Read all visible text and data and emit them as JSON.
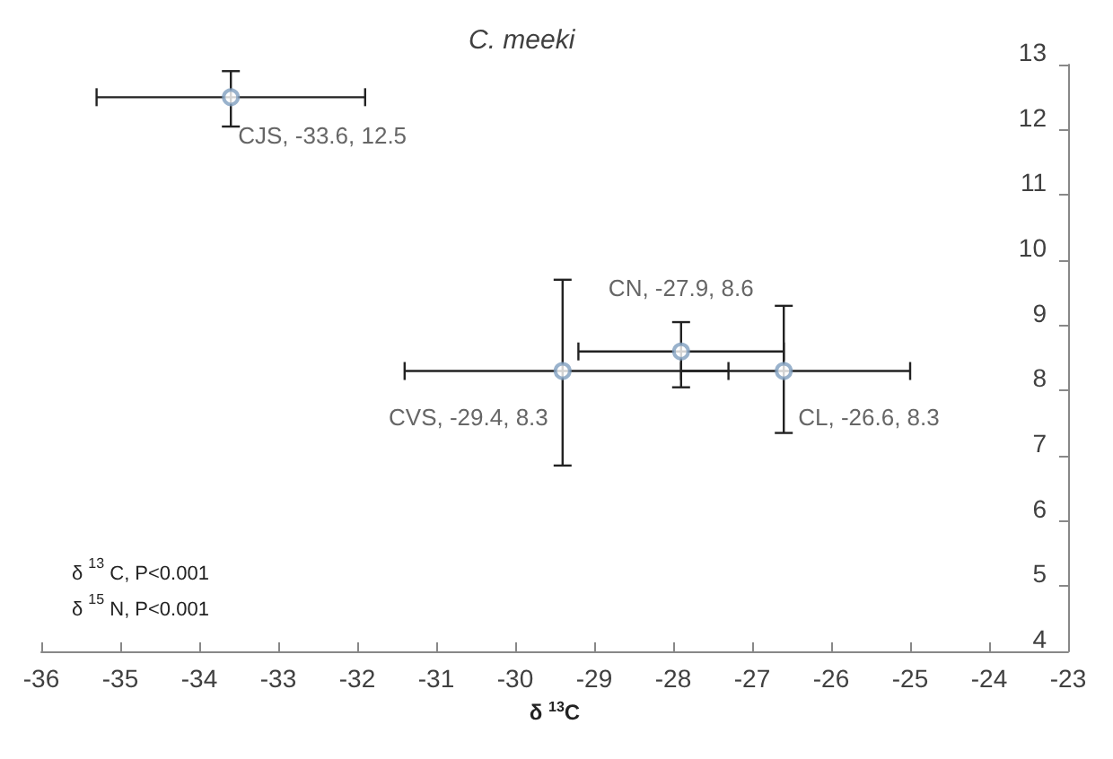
{
  "chart_data": {
    "type": "scatter",
    "title": "C. meeki",
    "xlabel": "δ $^{13}$C",
    "annotations": [
      "δ $^{13}$ C, P<0.001",
      "δ $^{15}$ N, P<0.001"
    ],
    "x": [
      -33.6,
      -29.4,
      -27.9,
      -26.6
    ],
    "series": [
      {
        "color": "#7f9fbf",
        "values": [
          12.5,
          8.3,
          8.6,
          8.3
        ],
        "value_labels": [
          "CJS, -33.6, 12.5",
          "CVS, -29.4, 8.3",
          "CN, -27.9, 8.6",
          "CL, -26.6, 8.3"
        ],
        "errors": [
          [
            12.05,
            12.9
          ],
          [
            6.85,
            9.7
          ],
          [
            8.05,
            9.05
          ],
          [
            7.35,
            9.3
          ]
        ],
        "xerrors": [
          [
            -35.3,
            -31.9
          ],
          [
            -31.4,
            -27.3
          ],
          [
            -29.2,
            -26.6
          ],
          [
            -27.9,
            -25.0
          ]
        ]
      }
    ],
    "xlim": [
      -36,
      -23
    ],
    "xticks": [
      -36,
      -35,
      -34,
      -33,
      -32,
      -31,
      -30,
      -29,
      -28,
      -27,
      -26,
      -25,
      -24,
      -23
    ],
    "ylim": [
      4,
      13
    ],
    "yticks": [
      4,
      5,
      6,
      7,
      8,
      9,
      10,
      11,
      12,
      13
    ],
    "marker": "circle",
    "grid": false
  }
}
